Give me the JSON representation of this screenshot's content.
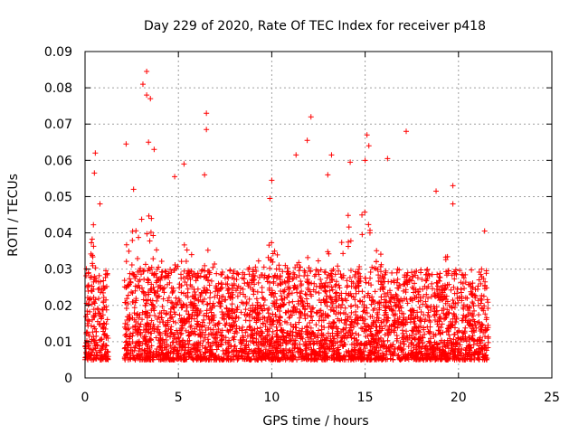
{
  "chart_data": {
    "type": "scatter",
    "title": "Day 229 of 2020, Rate Of TEC Index for receiver p418",
    "xlabel": "GPS time / hours",
    "ylabel": "ROTI / TECUs",
    "xlim": [
      0,
      25
    ],
    "ylim": [
      0,
      0.09
    ],
    "xticks": [
      "0",
      "5",
      "10",
      "15",
      "20",
      "25"
    ],
    "yticks": [
      "0",
      "0.01",
      "0.02",
      "0.03",
      "0.04",
      "0.05",
      "0.06",
      "0.07",
      "0.08",
      "0.09"
    ],
    "grid": true,
    "marker": "+",
    "color": "#ff0000",
    "observation_windows_hours": [
      [
        0.0,
        1.25
      ],
      [
        2.1,
        21.6
      ]
    ],
    "typical_range": [
      0.005,
      0.03
    ],
    "peaks": [
      {
        "x": 0.55,
        "y": 0.062
      },
      {
        "x": 0.5,
        "y": 0.0565
      },
      {
        "x": 0.8,
        "y": 0.048
      },
      {
        "x": 2.2,
        "y": 0.0645
      },
      {
        "x": 2.6,
        "y": 0.052
      },
      {
        "x": 3.1,
        "y": 0.081
      },
      {
        "x": 3.3,
        "y": 0.0845
      },
      {
        "x": 3.3,
        "y": 0.078
      },
      {
        "x": 3.5,
        "y": 0.077
      },
      {
        "x": 3.4,
        "y": 0.065
      },
      {
        "x": 3.7,
        "y": 0.063
      },
      {
        "x": 5.3,
        "y": 0.059
      },
      {
        "x": 4.8,
        "y": 0.0555
      },
      {
        "x": 6.5,
        "y": 0.073
      },
      {
        "x": 6.5,
        "y": 0.0685
      },
      {
        "x": 6.4,
        "y": 0.056
      },
      {
        "x": 9.9,
        "y": 0.0495
      },
      {
        "x": 10.0,
        "y": 0.0545
      },
      {
        "x": 11.9,
        "y": 0.0655
      },
      {
        "x": 12.1,
        "y": 0.072
      },
      {
        "x": 11.3,
        "y": 0.0615
      },
      {
        "x": 13.2,
        "y": 0.0615
      },
      {
        "x": 13.0,
        "y": 0.056
      },
      {
        "x": 14.2,
        "y": 0.0595
      },
      {
        "x": 15.1,
        "y": 0.067
      },
      {
        "x": 15.2,
        "y": 0.064
      },
      {
        "x": 15.0,
        "y": 0.06
      },
      {
        "x": 16.2,
        "y": 0.0605
      },
      {
        "x": 17.2,
        "y": 0.068
      },
      {
        "x": 18.8,
        "y": 0.0515
      },
      {
        "x": 19.7,
        "y": 0.053
      },
      {
        "x": 19.7,
        "y": 0.048
      },
      {
        "x": 21.4,
        "y": 0.0405
      }
    ],
    "activity_envelope": [
      {
        "x": 0.0,
        "y": 0.028
      },
      {
        "x": 0.5,
        "y": 0.045
      },
      {
        "x": 1.0,
        "y": 0.03
      },
      {
        "x": 1.25,
        "y": 0.022
      },
      {
        "x": 2.1,
        "y": 0.036
      },
      {
        "x": 2.5,
        "y": 0.044
      },
      {
        "x": 3.0,
        "y": 0.05
      },
      {
        "x": 3.5,
        "y": 0.046
      },
      {
        "x": 4.0,
        "y": 0.034
      },
      {
        "x": 4.5,
        "y": 0.03
      },
      {
        "x": 5.0,
        "y": 0.036
      },
      {
        "x": 5.5,
        "y": 0.04
      },
      {
        "x": 6.0,
        "y": 0.03
      },
      {
        "x": 6.5,
        "y": 0.042
      },
      {
        "x": 7.0,
        "y": 0.03
      },
      {
        "x": 7.5,
        "y": 0.026
      },
      {
        "x": 8.0,
        "y": 0.026
      },
      {
        "x": 8.5,
        "y": 0.03
      },
      {
        "x": 9.0,
        "y": 0.032
      },
      {
        "x": 9.5,
        "y": 0.036
      },
      {
        "x": 10.0,
        "y": 0.038
      },
      {
        "x": 10.5,
        "y": 0.032
      },
      {
        "x": 11.0,
        "y": 0.03
      },
      {
        "x": 11.5,
        "y": 0.034
      },
      {
        "x": 12.0,
        "y": 0.036
      },
      {
        "x": 12.5,
        "y": 0.034
      },
      {
        "x": 13.0,
        "y": 0.036
      },
      {
        "x": 13.5,
        "y": 0.034
      },
      {
        "x": 14.0,
        "y": 0.046
      },
      {
        "x": 14.5,
        "y": 0.04
      },
      {
        "x": 15.0,
        "y": 0.048
      },
      {
        "x": 15.5,
        "y": 0.038
      },
      {
        "x": 16.0,
        "y": 0.034
      },
      {
        "x": 16.5,
        "y": 0.03
      },
      {
        "x": 17.0,
        "y": 0.03
      },
      {
        "x": 17.5,
        "y": 0.028
      },
      {
        "x": 18.0,
        "y": 0.03
      },
      {
        "x": 18.5,
        "y": 0.036
      },
      {
        "x": 19.0,
        "y": 0.034
      },
      {
        "x": 19.5,
        "y": 0.036
      },
      {
        "x": 20.0,
        "y": 0.028
      },
      {
        "x": 20.5,
        "y": 0.03
      },
      {
        "x": 21.0,
        "y": 0.03
      },
      {
        "x": 21.6,
        "y": 0.026
      }
    ]
  }
}
